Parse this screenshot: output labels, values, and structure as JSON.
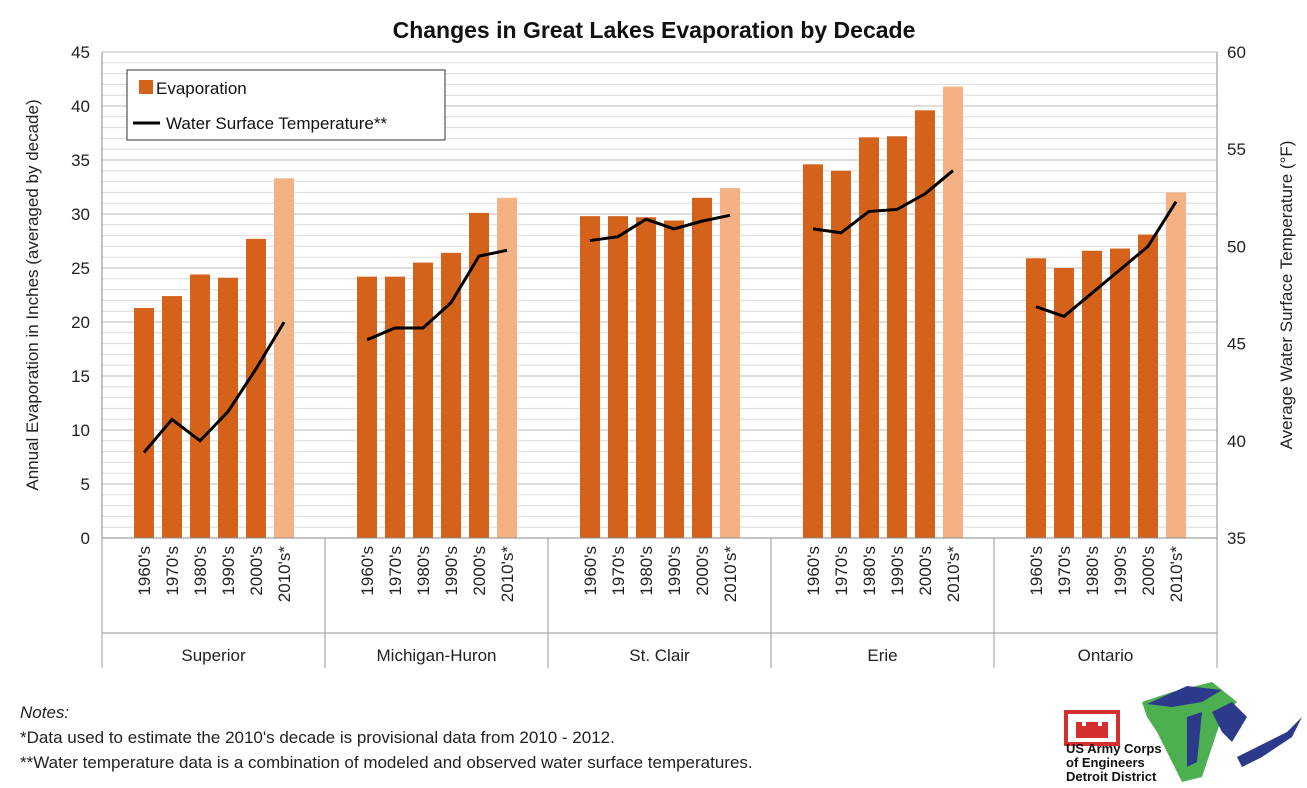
{
  "chart_data": {
    "type": "bar",
    "title": "Changes in Great Lakes Evaporation by Decade",
    "ylabel": "Annual Evaporation in Inches (averaged by decade)",
    "y2label": "Average Water Surface Temperature (°F)",
    "ylim": [
      0,
      45
    ],
    "yticks": [
      0,
      5,
      10,
      15,
      20,
      25,
      30,
      35,
      40,
      45
    ],
    "y2lim": [
      35,
      60
    ],
    "y2ticks": [
      35,
      40,
      45,
      50,
      55,
      60
    ],
    "grid": true,
    "legend_position": "top-left",
    "groups": [
      "Superior",
      "Michigan-Huron",
      "St. Clair",
      "Erie",
      "Ontario"
    ],
    "categories": [
      "1960's",
      "1970's",
      "1980's",
      "1990's",
      "2000's",
      "2010's*"
    ],
    "series": [
      {
        "name": "Evaporation",
        "type": "bar",
        "axis": "left",
        "color": "#D4621A",
        "provisional_color": "#F4B183",
        "values": [
          [
            21.3,
            22.4,
            24.4,
            24.1,
            27.7,
            33.3
          ],
          [
            24.2,
            24.2,
            25.5,
            26.4,
            30.1,
            31.5
          ],
          [
            29.8,
            29.8,
            29.7,
            29.4,
            31.5,
            32.4
          ],
          [
            34.6,
            34.0,
            37.1,
            37.2,
            39.6,
            41.8
          ],
          [
            25.9,
            25.0,
            26.6,
            26.8,
            28.1,
            32.0
          ]
        ]
      },
      {
        "name": "Water Surface Temperature**",
        "type": "line",
        "axis": "right",
        "color": "#000000",
        "values": [
          [
            39.4,
            41.1,
            40.0,
            41.5,
            43.7,
            46.1
          ],
          [
            45.2,
            45.8,
            45.8,
            47.1,
            49.5,
            49.8
          ],
          [
            50.3,
            50.5,
            51.4,
            50.9,
            51.3,
            51.6
          ],
          [
            50.9,
            50.7,
            51.8,
            51.9,
            52.7,
            53.9
          ],
          [
            46.9,
            46.4,
            47.6,
            48.8,
            50.0,
            52.3
          ]
        ]
      }
    ]
  },
  "notes": {
    "heading": "Notes:",
    "line1": "*Data used to estimate the 2010's decade is provisional data from 2010 - 2012.",
    "line2": "**Water temperature data is a combination of modeled and observed water surface temperatures."
  },
  "logo": {
    "text1": "US Army Corps",
    "text2": "of Engineers",
    "text3": "Detroit District"
  }
}
